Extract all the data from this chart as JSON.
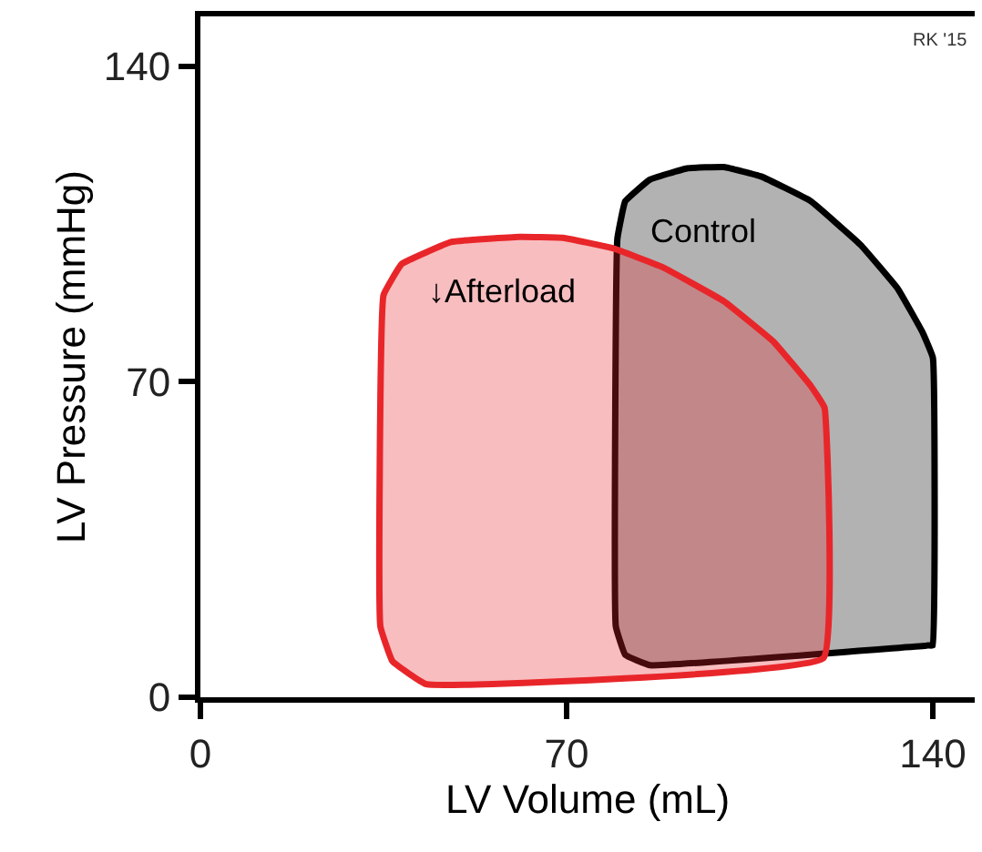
{
  "chart_data": {
    "type": "area",
    "xlabel": "LV Volume (mL)",
    "ylabel": "LV Pressure (mmHg)",
    "xlim": [
      0,
      148
    ],
    "ylim": [
      0,
      151
    ],
    "xticks": [
      0,
      70,
      140
    ],
    "yticks": [
      0,
      70,
      140
    ],
    "series": [
      {
        "name": "Control",
        "color": "#000000",
        "x": [
          85.9,
          139.2,
          140,
          140,
          138,
          133.3,
          126.2,
          116.7,
          107.2,
          100.1,
          93,
          85.9,
          81.2,
          79.7,
          79.4,
          81.2,
          85.9
        ],
        "values": [
          7.1,
          11.5,
          11.5,
          75.3,
          81,
          90.6,
          100.3,
          110,
          115.5,
          117.6,
          117.3,
          114.8,
          110,
          101.7,
          15.7,
          9.4,
          7.1
        ]
      },
      {
        "name": "↓Afterload",
        "color": "#e8262a",
        "x": [
          43.2,
          119.1,
          119.3,
          116.7,
          109.6,
          100.1,
          88.3,
          78.8,
          69.3,
          61,
          48,
          38.5,
          35,
          34.4,
          36.7,
          43.2
        ],
        "values": [
          2.9,
          8.7,
          64.2,
          69,
          78.8,
          87.8,
          95.4,
          99.6,
          101.9,
          102.1,
          101,
          96.1,
          89.2,
          15.7,
          8,
          2.9
        ]
      }
    ],
    "annotations": [
      "RK '15"
    ]
  }
}
